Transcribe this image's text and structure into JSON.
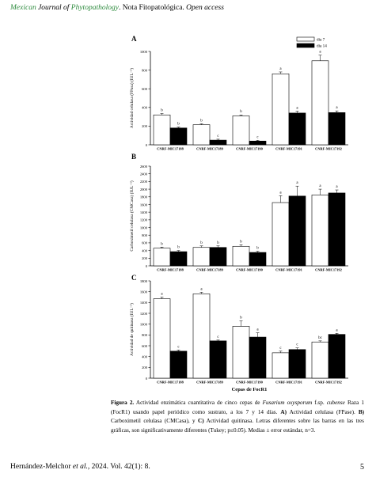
{
  "header": {
    "journal_part1": "Mexican ",
    "journal_part2": "Journal of ",
    "journal_part3": "Phytopathology",
    "journal_part4": ". Nota Fitopatológica. ",
    "journal_part5": "Open access"
  },
  "legend": {
    "day7": "día 7",
    "day14": "día 14"
  },
  "x_axis_title": "Cepas de FocR1",
  "chart_data": [
    {
      "type": "bar",
      "panel_label": "A",
      "ylabel": "Actividad celulasa (FPasa) (IUL⁻¹)",
      "ylim": [
        0,
        1000
      ],
      "ticks": [
        0,
        200,
        400,
        600,
        800,
        1000
      ],
      "categories": [
        "CNRF-MIC17188",
        "CNRF-MIC17189",
        "CNRF-MIC17190",
        "CNRF-MIC17191",
        "CNRF-MIC17192"
      ],
      "series": [
        {
          "name": "día 7",
          "values": [
            320,
            215,
            310,
            760,
            900
          ],
          "errors": [
            15,
            10,
            10,
            20,
            60
          ],
          "letters": [
            "b",
            "b",
            "b",
            "a",
            "a"
          ]
        },
        {
          "name": "día 14",
          "values": [
            180,
            50,
            40,
            340,
            345
          ],
          "errors": [
            10,
            10,
            8,
            20,
            18
          ],
          "letters": [
            "b",
            "c",
            "c",
            "a",
            "a"
          ]
        }
      ]
    },
    {
      "type": "bar",
      "panel_label": "B",
      "ylabel": "Carboximetil celulasa (CMCasa) (IUL⁻¹)",
      "ylim": [
        0,
        2600
      ],
      "ticks": [
        0,
        200,
        400,
        600,
        800,
        1000,
        1200,
        1400,
        1600,
        1800,
        2000,
        2200,
        2400,
        2600
      ],
      "categories": [
        "CNRF-MIC17188",
        "CNRF-MIC17189",
        "CNRF-MIC17190",
        "CNRF-MIC17191",
        "CNRF-MIC17192"
      ],
      "series": [
        {
          "name": "día 7",
          "values": [
            460,
            480,
            510,
            1650,
            1850
          ],
          "errors": [
            30,
            40,
            40,
            180,
            150
          ],
          "letters": [
            "b",
            "b",
            "b",
            "a",
            "a"
          ]
        },
        {
          "name": "día 14",
          "values": [
            370,
            480,
            350,
            1820,
            1900
          ],
          "errors": [
            30,
            40,
            30,
            260,
            80
          ],
          "letters": [
            "b",
            "b",
            "b",
            "a",
            "a"
          ]
        }
      ]
    },
    {
      "type": "bar",
      "panel_label": "C",
      "ylabel": "Actividad de quitinasa (IUL⁻¹)",
      "ylim": [
        0,
        1800
      ],
      "ticks": [
        0,
        200,
        400,
        600,
        800,
        1000,
        1200,
        1400,
        1600,
        1800
      ],
      "categories": [
        "CNRF-MIC17188",
        "CNRF-MIC17189",
        "CNRF-MIC17190",
        "CNRF-MIC17191",
        "CNRF-MIC17192"
      ],
      "series": [
        {
          "name": "día 7",
          "values": [
            1470,
            1560,
            960,
            470,
            670
          ],
          "errors": [
            30,
            30,
            100,
            30,
            20
          ],
          "letters": [
            "a",
            "a",
            "b",
            "c",
            "bc"
          ]
        },
        {
          "name": "día 14",
          "values": [
            500,
            690,
            760,
            530,
            810
          ],
          "errors": [
            20,
            15,
            80,
            30,
            20
          ],
          "letters": [
            "c",
            "c",
            "a",
            "c",
            "a"
          ]
        }
      ]
    }
  ],
  "caption": {
    "label": "Figura 2.",
    "p1": " Actividad enzimática cuantitativa de cinco cepas de ",
    "species": "Fusarium oxysporum",
    "p2": " f.sp. ",
    "forma": "cubense",
    "p3": " Raza 1 (FocR1) usando papel periódico como sustrato, a los 7 y 14 días. ",
    "a_label": "A)",
    "a_text": " Actividad celulasa (FPase). ",
    "b_label": "B)",
    "b_text": " Carboximetil celulasa (CMCasa), y ",
    "c_label": "C)",
    "c_text": " Actividad quitinasa. Letras diferentes sobre las barras en las tres gráficas, son significativamente diferentes (Tukey; p≤0.05). Medias ± error estándar, n=3."
  },
  "footer": {
    "authors": "Hernández-Melchor ",
    "etal": "et al.",
    "citation": ",  2024. Vol. 42(1): 8.",
    "page_number": "5"
  }
}
